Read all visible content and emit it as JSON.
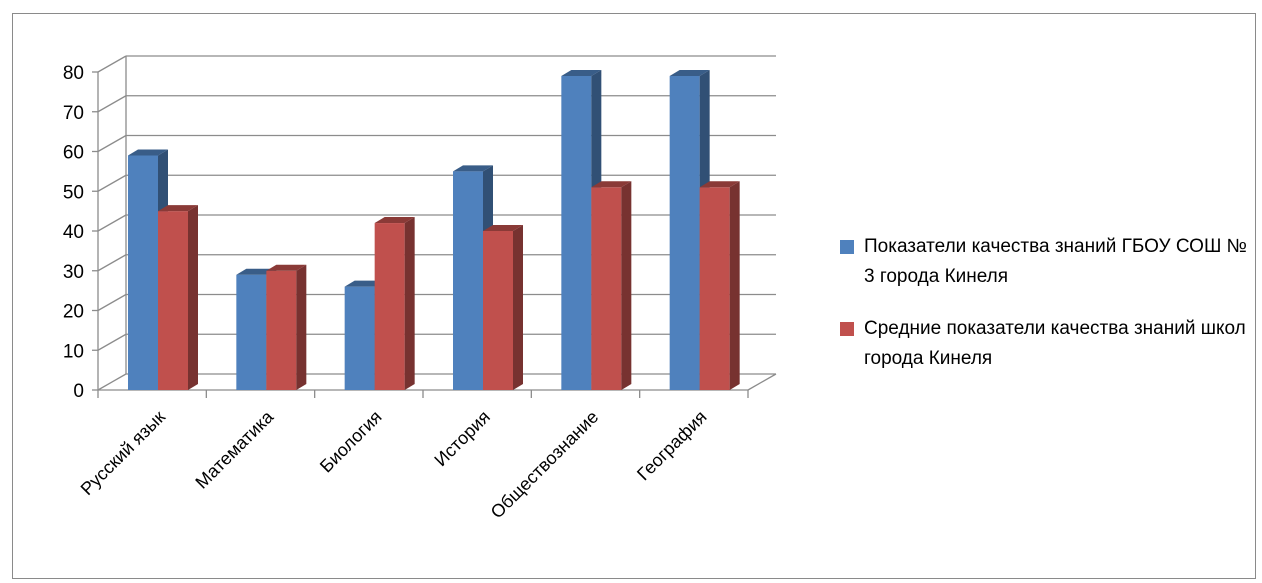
{
  "chart_data": {
    "type": "bar",
    "categories": [
      "Русский язык",
      "Математика",
      "Биология",
      "История",
      "Обществознание",
      "География"
    ],
    "series": [
      {
        "name": "Показатели качества знаний ГБОУ СОШ № 3 города Кинеля",
        "values": [
          59,
          29,
          26,
          55,
          79,
          79
        ],
        "color": "#4f81bd"
      },
      {
        "name": "Средние показатели качества знаний школ города Кинеля",
        "values": [
          45,
          30,
          42,
          40,
          51,
          51
        ],
        "color": "#c0504d"
      }
    ],
    "yticks": [
      0,
      10,
      20,
      30,
      40,
      50,
      60,
      70,
      80
    ],
    "ylim": [
      0,
      80
    ],
    "grid": true,
    "legend_position": "right"
  }
}
